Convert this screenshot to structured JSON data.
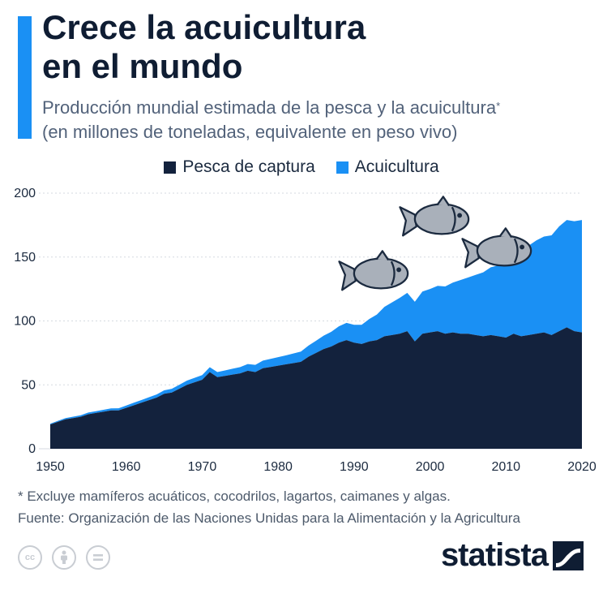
{
  "header": {
    "title_line1": "Crece la acuicultura",
    "title_line2": "en el mundo",
    "subtitle_line1": "Producción mundial estimada de la pesca y la acuicultura",
    "subtitle_mark": "*",
    "subtitle_line2": "(en millones de toneladas, equivalente en peso vivo)"
  },
  "legend": {
    "items": [
      {
        "label": "Pesca de captura",
        "color": "#13223d"
      },
      {
        "label": "Acuicultura",
        "color": "#1a90f4"
      }
    ]
  },
  "footer": {
    "footnote": "* Excluye mamíferos acuáticos, cocodrilos, lagartos, caimanes y algas.",
    "source": "Fuente: Organización de las Naciones Unidas para la Alimentación y la Agricultura",
    "brand": "statista",
    "license_icons": [
      "cc-icon",
      "by-icon",
      "nd-icon"
    ]
  },
  "chart_data": {
    "type": "area",
    "stacked": true,
    "x": [
      1950,
      1951,
      1952,
      1953,
      1954,
      1955,
      1956,
      1957,
      1958,
      1959,
      1960,
      1961,
      1962,
      1963,
      1964,
      1965,
      1966,
      1967,
      1968,
      1969,
      1970,
      1971,
      1972,
      1973,
      1974,
      1975,
      1976,
      1977,
      1978,
      1979,
      1980,
      1981,
      1982,
      1983,
      1984,
      1985,
      1986,
      1987,
      1988,
      1989,
      1990,
      1991,
      1992,
      1993,
      1994,
      1995,
      1996,
      1997,
      1998,
      1999,
      2000,
      2001,
      2002,
      2003,
      2004,
      2005,
      2006,
      2007,
      2008,
      2009,
      2010,
      2011,
      2012,
      2013,
      2014,
      2015,
      2016,
      2017,
      2018,
      2019,
      2020
    ],
    "series": [
      {
        "name": "Pesca de captura",
        "color": "#13223d",
        "values": [
          19,
          21,
          23,
          24,
          25,
          27,
          28,
          29,
          30,
          30,
          32,
          34,
          36,
          38,
          40,
          43,
          44,
          47,
          50,
          52,
          54,
          60,
          56,
          57,
          58,
          59,
          61,
          60,
          63,
          64,
          65,
          66,
          67,
          68,
          72,
          75,
          78,
          80,
          83,
          85,
          83,
          82,
          84,
          85,
          88,
          89,
          90,
          92,
          84,
          90,
          91,
          92,
          90,
          91,
          90,
          90,
          89,
          88,
          89,
          88,
          87,
          90,
          88,
          89,
          90,
          91,
          89,
          92,
          95,
          92,
          91
        ],
        "ylim": [
          0,
          200
        ]
      },
      {
        "name": "Acuicultura",
        "color": "#1a90f4",
        "values": [
          0.6,
          0.8,
          1,
          1.1,
          1.2,
          1.3,
          1.4,
          1.5,
          1.6,
          1.7,
          1.8,
          2,
          2.1,
          2.3,
          2.5,
          2.7,
          2.9,
          3.1,
          3.3,
          3.5,
          3.6,
          3.8,
          4,
          4.3,
          4.6,
          4.9,
          5.3,
          5.6,
          6,
          6.3,
          6.7,
          7,
          7.5,
          8,
          8.7,
          9.5,
          10.5,
          11.5,
          12.8,
          13.5,
          14,
          15,
          17.5,
          20,
          23,
          25.5,
          28,
          30,
          31,
          33,
          34,
          35.5,
          37,
          39,
          42,
          44,
          47,
          50,
          53,
          55.5,
          59,
          62,
          67,
          70,
          73,
          75,
          78,
          82,
          84,
          86,
          88
        ]
      }
    ],
    "xlim": [
      1950,
      2020
    ],
    "ylim": [
      0,
      200
    ],
    "x_ticks": [
      1950,
      1960,
      1970,
      1980,
      1990,
      2000,
      2010,
      2020
    ],
    "y_ticks": [
      0,
      50,
      100,
      150,
      200
    ],
    "grid": "horizontal"
  }
}
